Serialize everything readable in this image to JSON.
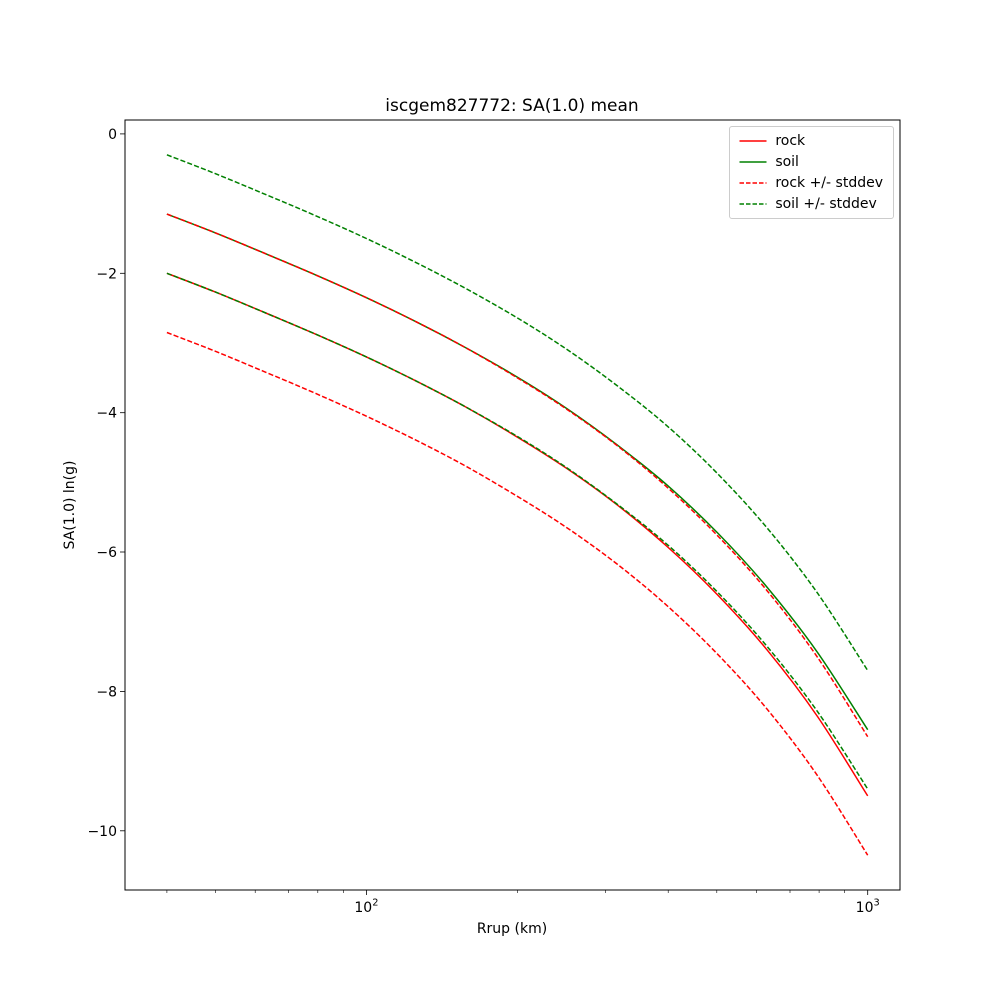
{
  "figure": {
    "title": "iscgem827772: SA(1.0) mean",
    "xlabel": "Rrup (km)",
    "ylabel": "SA(1.0) ln(g)"
  },
  "chart_data": {
    "type": "line",
    "title": "iscgem827772: SA(1.0) mean",
    "xlabel": "Rrup (km)",
    "ylabel": "SA(1.0) ln(g)",
    "x_scale": "log",
    "xlim": [
      33,
      1160
    ],
    "ylim": [
      -10.85,
      0.2
    ],
    "grid": false,
    "legend_position": "upper right",
    "x_ticks": [
      {
        "value": 100,
        "base": "10",
        "exponent": "2"
      },
      {
        "value": 1000,
        "base": "10",
        "exponent": "3"
      }
    ],
    "y_ticks": [
      {
        "value": 0,
        "label": "0"
      },
      {
        "value": -2,
        "label": "−2"
      },
      {
        "value": -4,
        "label": "−4"
      },
      {
        "value": -6,
        "label": "−6"
      },
      {
        "value": -8,
        "label": "−8"
      },
      {
        "value": -10,
        "label": "−10"
      }
    ],
    "x": [
      40,
      50,
      63,
      79,
      100,
      126,
      158,
      200,
      251,
      316,
      398,
      501,
      631,
      794,
      1000
    ],
    "series": [
      {
        "name": "rock",
        "color": "#ff0000",
        "style": "solid",
        "values": [
          -2.0,
          -2.27,
          -2.57,
          -2.87,
          -3.2,
          -3.55,
          -3.92,
          -4.35,
          -4.8,
          -5.32,
          -5.92,
          -6.61,
          -7.41,
          -8.36,
          -9.5
        ]
      },
      {
        "name": "soil",
        "color": "#008000",
        "style": "solid",
        "values": [
          -1.15,
          -1.42,
          -1.72,
          -2.02,
          -2.35,
          -2.7,
          -3.07,
          -3.49,
          -3.94,
          -4.46,
          -5.04,
          -5.72,
          -6.51,
          -7.44,
          -8.55
        ]
      },
      {
        "name": "rock plus stddev",
        "color": "#ff0000",
        "style": "dashed",
        "values": [
          -1.15,
          -1.42,
          -1.72,
          -2.02,
          -2.35,
          -2.7,
          -3.07,
          -3.5,
          -3.95,
          -4.47,
          -5.07,
          -5.76,
          -6.56,
          -7.51,
          -8.65
        ]
      },
      {
        "name": "rock minus stddev",
        "color": "#ff0000",
        "style": "dashed",
        "values": [
          -2.85,
          -3.12,
          -3.42,
          -3.72,
          -4.05,
          -4.4,
          -4.77,
          -5.2,
          -5.65,
          -6.17,
          -6.77,
          -7.46,
          -8.26,
          -9.21,
          -10.35
        ]
      },
      {
        "name": "soil plus stddev",
        "color": "#008000",
        "style": "dashed",
        "values": [
          -0.3,
          -0.57,
          -0.87,
          -1.17,
          -1.5,
          -1.85,
          -2.22,
          -2.64,
          -3.09,
          -3.61,
          -4.19,
          -4.87,
          -5.66,
          -6.59,
          -7.7
        ]
      },
      {
        "name": "soil minus stddev",
        "color": "#008000",
        "style": "dashed",
        "values": [
          -2.0,
          -2.27,
          -2.57,
          -2.87,
          -3.2,
          -3.55,
          -3.92,
          -4.34,
          -4.79,
          -5.31,
          -5.89,
          -6.57,
          -7.36,
          -8.29,
          -9.4
        ]
      }
    ],
    "legend": [
      {
        "label": "rock",
        "color": "#ff0000",
        "style": "solid"
      },
      {
        "label": "soil",
        "color": "#008000",
        "style": "solid"
      },
      {
        "label": "rock +/- stddev",
        "color": "#ff0000",
        "style": "dashed"
      },
      {
        "label": "soil +/- stddev",
        "color": "#008000",
        "style": "dashed"
      }
    ]
  }
}
